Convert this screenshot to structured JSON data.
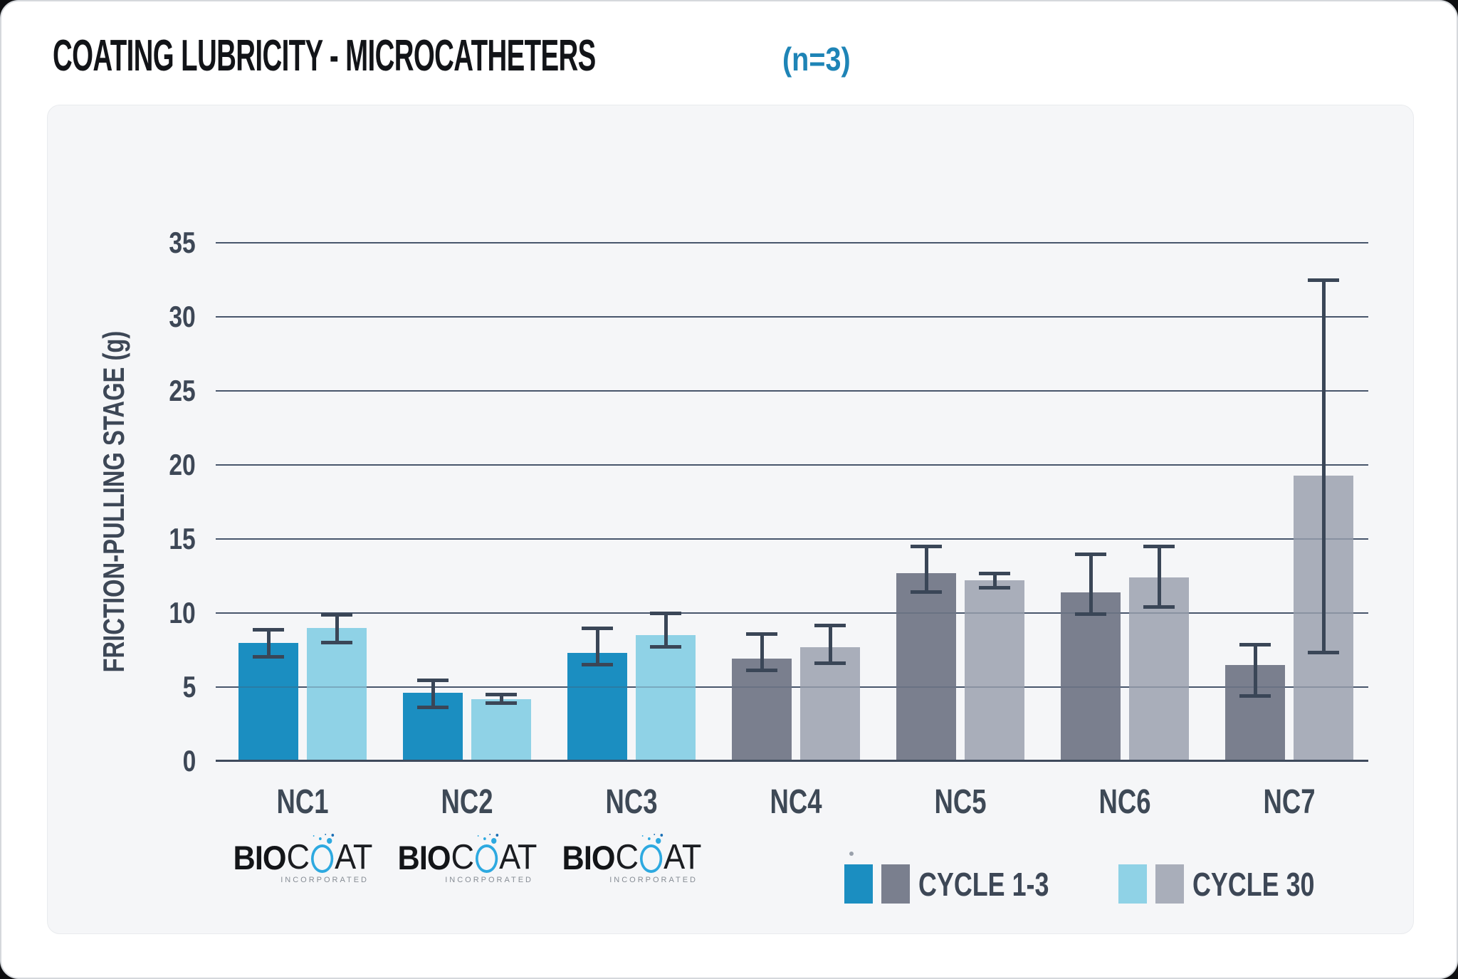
{
  "header": {
    "title": "COATING LUBRICITY - MICROCATHETERS",
    "sample_size": "(n=3)"
  },
  "chart_data": {
    "type": "bar",
    "title": "COATING LUBRICITY - MICROCATHETERS (n=3)",
    "ylabel": "FRICTION-PULLING STAGE (g)",
    "xlabel": "",
    "ylim": [
      0,
      35
    ],
    "ytick_step": 5,
    "grid": true,
    "legend_position": "bottom-right",
    "categories": [
      "NC1",
      "NC2",
      "NC3",
      "NC4",
      "NC5",
      "NC6",
      "NC7"
    ],
    "blue_category_count": 3,
    "series": [
      {
        "name": "CYCLE 1-3",
        "values": [
          8.0,
          4.6,
          7.3,
          6.9,
          12.7,
          11.4,
          6.5
        ],
        "err_lo": [
          6.9,
          3.5,
          6.4,
          6.0,
          11.3,
          9.8,
          4.3
        ],
        "err_hi": [
          9.0,
          5.6,
          9.1,
          8.7,
          14.6,
          14.1,
          8.0
        ]
      },
      {
        "name": "CYCLE 30",
        "values": [
          9.0,
          4.2,
          8.5,
          7.7,
          12.2,
          12.4,
          19.3
        ],
        "err_lo": [
          7.9,
          3.8,
          7.6,
          6.5,
          11.6,
          10.3,
          7.2
        ],
        "err_hi": [
          10.0,
          4.6,
          10.1,
          9.3,
          12.8,
          14.6,
          32.6
        ]
      }
    ],
    "colors": {
      "blue": [
        "#1b8ec1",
        "#8fd2e6"
      ],
      "gray": [
        "#7a7f8e",
        "#a9aeba"
      ],
      "errorbar": "#3a4657",
      "gridline": "#49566c",
      "axis_text": "#3d4756",
      "accent_blue": "#1e84b6"
    },
    "legend": [
      {
        "label": "CYCLE 1-3",
        "swatches": [
          "#1b8ec1",
          "#7a7f8e"
        ]
      },
      {
        "label": "CYCLE 30",
        "swatches": [
          "#8fd2e6",
          "#a9aeba"
        ]
      }
    ]
  },
  "logos": {
    "text_bold": "BIO",
    "text_c": "C",
    "text_at": "AT",
    "subtext": "INCORPORATED",
    "under_categories": [
      "NC1",
      "NC2",
      "NC3"
    ]
  }
}
